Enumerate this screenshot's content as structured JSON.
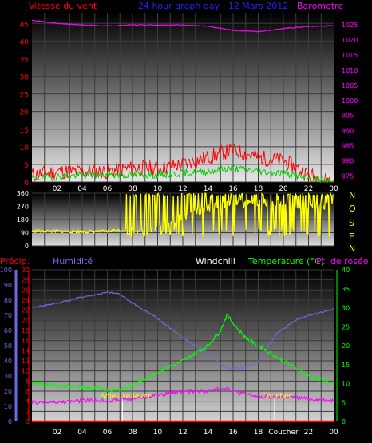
{
  "chart_data": [
    {
      "type": "line",
      "title": "24 hour graph day : 12 Mars 2012",
      "ylabel_left": "Vitesse du vent",
      "ylabel_right": "Barometre",
      "x_ticks": [
        "02",
        "04",
        "06",
        "08",
        "10",
        "12",
        "14",
        "16",
        "18",
        "20",
        "22",
        "00"
      ],
      "y_left": {
        "ticks": [
          "0",
          "5",
          "10",
          "15",
          "20",
          "25",
          "30",
          "35",
          "40",
          "45"
        ],
        "range": [
          0,
          48
        ]
      },
      "y_right": {
        "ticks": [
          "975",
          "980",
          "985",
          "990",
          "995",
          "1000",
          "1005",
          "1010",
          "1015",
          "1020",
          "1025"
        ],
        "range": [
          973,
          1029
        ]
      },
      "series": [
        {
          "name": "Barometre",
          "color": "#ff00ff",
          "axis": "right",
          "x": [
            0,
            2,
            4,
            6,
            8,
            10,
            12,
            14,
            16,
            18,
            20,
            22,
            24
          ],
          "values": [
            1026.5,
            1025.5,
            1025,
            1024.6,
            1025,
            1025,
            1025,
            1024.5,
            1023.2,
            1022.8,
            1023.8,
            1024.5,
            1024.7
          ]
        },
        {
          "name": "",
          "color": "#ff0000",
          "axis": "left",
          "x": [
            0,
            2,
            4,
            6,
            8,
            10,
            12,
            14,
            16,
            18,
            20,
            22,
            24
          ],
          "values": [
            2,
            3,
            3,
            3,
            4,
            4,
            5,
            7,
            9,
            7,
            6,
            2,
            0
          ]
        },
        {
          "name": "",
          "color": "#00cc00",
          "axis": "left",
          "x": [
            0,
            2,
            4,
            6,
            8,
            10,
            12,
            14,
            16,
            18,
            20,
            22,
            24
          ],
          "values": [
            1,
            1.5,
            2,
            2,
            2,
            2,
            2.5,
            3,
            4,
            3,
            2.5,
            1,
            0
          ]
        }
      ]
    },
    {
      "type": "line",
      "ylabel_right": "N O S E N",
      "right_labels": [
        "N",
        "O",
        "S",
        "E",
        "N"
      ],
      "x_ticks": [],
      "y_left": {
        "ticks": [
          "0",
          "90",
          "180",
          "270",
          "360"
        ],
        "range": [
          0,
          360
        ]
      },
      "series": [
        {
          "name": "",
          "color": "#ffff00",
          "x": [
            0,
            2,
            4,
            6,
            7.5,
            8,
            10,
            12,
            14,
            16,
            18,
            20,
            22,
            24
          ],
          "values": [
            100,
            100,
            95,
            100,
            110,
            95,
            110,
            200,
            260,
            280,
            300,
            280,
            260,
            280
          ]
        }
      ]
    },
    {
      "type": "line",
      "labels": {
        "precip": "Précip.",
        "humidity": "Humidité",
        "windchill": "Windchill",
        "temperature": "Temperature (°C)",
        "dewpoint": "Pt. de rosée"
      },
      "annotations": [
        {
          "text": "Soleil se lever",
          "x": 7.2
        },
        {
          "text": "Coucher",
          "x": 19.3
        }
      ],
      "x_ticks": [
        "02",
        "04",
        "06",
        "08",
        "10",
        "12",
        "14",
        "16",
        "18",
        "Coucher",
        "22",
        "00"
      ],
      "y_precip": {
        "ticks": [
          "0",
          "2",
          "4",
          "6",
          "8",
          "10",
          "12",
          "14",
          "16",
          "18",
          "20",
          "22",
          "24",
          "26",
          "28",
          "30"
        ],
        "range": [
          0,
          30
        ]
      },
      "y_humidity": {
        "ticks": [
          "0",
          "10",
          "20",
          "30",
          "40",
          "50",
          "60",
          "70",
          "80",
          "90",
          "100"
        ],
        "range": [
          0,
          100
        ]
      },
      "y_temp": {
        "ticks": [
          "0",
          "5",
          "10",
          "15",
          "20",
          "25",
          "30",
          "35",
          "40"
        ],
        "range": [
          0,
          40
        ]
      },
      "series": [
        {
          "name": "Humidité",
          "color": "#6b6bdf",
          "axis": "humidity",
          "x": [
            0,
            2,
            4,
            6,
            7,
            8,
            10,
            12,
            14,
            15.5,
            17,
            18,
            19.5,
            21,
            22,
            24
          ],
          "values": [
            75,
            78,
            82,
            85,
            84,
            78,
            68,
            55,
            45,
            35,
            35,
            40,
            58,
            67,
            70,
            74
          ]
        },
        {
          "name": "Temperature (°C)",
          "color": "#00ff00",
          "axis": "temp",
          "x": [
            0,
            2,
            4,
            6,
            7,
            8,
            10,
            12,
            14,
            15,
            15.5,
            16,
            17,
            18,
            19,
            20,
            21,
            22,
            24
          ],
          "values": [
            10,
            9.5,
            9,
            8.5,
            8.5,
            9.5,
            13,
            16,
            20,
            24,
            28,
            26,
            22,
            20,
            18,
            16,
            14,
            12,
            10
          ]
        },
        {
          "name": "Pt. de rosée",
          "color": "#ff00ff",
          "axis": "temp",
          "x": [
            0,
            2,
            4,
            6,
            8,
            10,
            12,
            14,
            15.5,
            16,
            18,
            20,
            22,
            24
          ],
          "values": [
            5,
            5,
            5.5,
            5.5,
            6,
            7,
            8,
            8,
            9,
            8,
            6.5,
            6.5,
            6,
            5.5
          ]
        },
        {
          "name": "Précip.",
          "color": "#ff0000",
          "axis": "precip",
          "x": [
            0,
            24
          ],
          "values": [
            0,
            0
          ]
        }
      ]
    }
  ],
  "colors": {
    "label_red": "#ff0000",
    "label_blue": "#6b6bdf",
    "label_white": "#ffffff",
    "label_green": "#00ff00",
    "label_magenta": "#ff00ff",
    "label_yellow": "#ffff00",
    "title_blue": "#2020ff",
    "hour_dark": "#000000"
  }
}
